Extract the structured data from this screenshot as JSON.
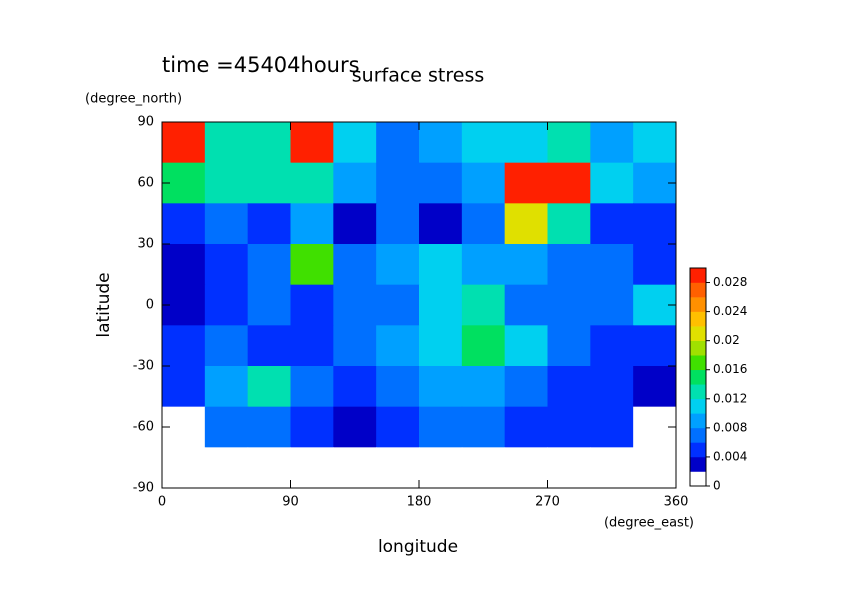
{
  "chart_data": {
    "type": "contour",
    "title": "surface stress",
    "subtitle": "time =45404hours",
    "x_label": "longitude",
    "x_unit": "(degree_east)",
    "y_label": "latitude",
    "y_unit": "(degree_north)",
    "xlim": [
      0,
      360
    ],
    "xticks": [
      0,
      90,
      180,
      270,
      360
    ],
    "ylim": [
      -90,
      90
    ],
    "yticks": [
      -90,
      -60,
      -30,
      0,
      30,
      60,
      90
    ],
    "x": [
      15,
      45,
      75,
      105,
      135,
      165,
      195,
      225,
      255,
      285,
      315,
      345
    ],
    "y": [
      80,
      60,
      40,
      20,
      0,
      -20,
      -40,
      -60,
      -80
    ],
    "z": [
      [
        0.03,
        0.012,
        0.012,
        0.028,
        0.01,
        0.006,
        0.008,
        0.01,
        0.01,
        0.012,
        0.008,
        0.01
      ],
      [
        0.014,
        0.012,
        0.012,
        0.012,
        0.008,
        0.006,
        0.006,
        0.008,
        0.03,
        0.028,
        0.01,
        0.008
      ],
      [
        0.004,
        0.006,
        0.004,
        0.008,
        0.002,
        0.006,
        0.002,
        0.006,
        0.02,
        0.012,
        0.004,
        0.004
      ],
      [
        0.002,
        0.004,
        0.006,
        0.016,
        0.006,
        0.008,
        0.01,
        0.008,
        0.008,
        0.006,
        0.006,
        0.004
      ],
      [
        0.002,
        0.004,
        0.006,
        0.004,
        0.006,
        0.006,
        0.01,
        0.012,
        0.006,
        0.006,
        0.006,
        0.01
      ],
      [
        0.004,
        0.006,
        0.004,
        0.004,
        0.006,
        0.008,
        0.01,
        0.014,
        0.01,
        0.006,
        0.004,
        0.004
      ],
      [
        0.004,
        0.008,
        0.012,
        0.006,
        0.004,
        0.006,
        0.008,
        0.008,
        0.006,
        0.004,
        0.004,
        0.002
      ],
      [
        0,
        0.006,
        0.006,
        0.004,
        0.002,
        0.004,
        0.006,
        0.006,
        0.004,
        0.004,
        0.004,
        0
      ],
      [
        0,
        0,
        0,
        0,
        0,
        0,
        0,
        0,
        0,
        0,
        0,
        0
      ]
    ],
    "clim": [
      0,
      0.03
    ],
    "cticks": [
      0,
      0.004,
      0.008,
      0.012,
      0.016,
      0.02,
      0.024,
      0.028
    ],
    "colors": [
      "#ffffff",
      "#0000c8",
      "#0030ff",
      "#0070ff",
      "#00a0ff",
      "#00d0f0",
      "#00e0b0",
      "#00e060",
      "#40e000",
      "#a0e000",
      "#e0e000",
      "#ffc000",
      "#ff9000",
      "#ff6000",
      "#ff2000"
    ]
  }
}
